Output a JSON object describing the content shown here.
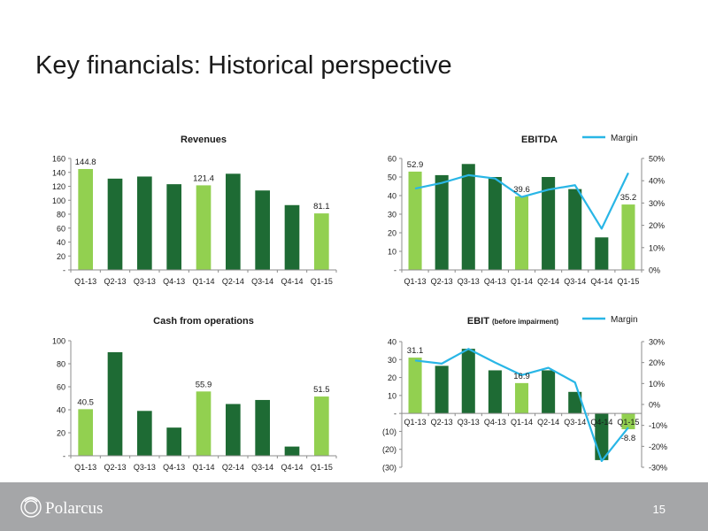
{
  "slide": {
    "title": "Key financials: Historical perspective",
    "page_number": "15",
    "logo_text": "Polarcus"
  },
  "colors": {
    "light_green": "#92d050",
    "dark_green": "#1e6b34",
    "margin_line": "#29b6e6",
    "axis_text": "#1a1a1a",
    "footer_bg": "#a5a6a8"
  },
  "chart_data": [
    {
      "id": "revenues",
      "type": "bar",
      "title": "Revenues",
      "categories": [
        "Q1-13",
        "Q2-13",
        "Q3-13",
        "Q4-13",
        "Q1-14",
        "Q2-14",
        "Q3-14",
        "Q4-14",
        "Q1-15"
      ],
      "values": [
        144.8,
        131,
        134,
        123,
        121.4,
        138,
        114,
        93,
        81.1
      ],
      "highlight": [
        0,
        4,
        8
      ],
      "data_labels": {
        "0": "144.8",
        "4": "121.4",
        "8": "81.1"
      },
      "ylim": [
        0,
        160
      ],
      "yticks": [
        0,
        20,
        40,
        60,
        80,
        100,
        120,
        140,
        160
      ],
      "ytick_labels": [
        "-",
        "20",
        "40",
        "60",
        "80",
        "100",
        "120",
        "140",
        "160"
      ],
      "grid": false
    },
    {
      "id": "ebitda",
      "type": "bar",
      "title": "EBITDA",
      "legend": "Margin",
      "legend_position": "top-right",
      "categories": [
        "Q1-13",
        "Q2-13",
        "Q3-13",
        "Q4-13",
        "Q1-14",
        "Q2-14",
        "Q3-14",
        "Q4-14",
        "Q1-15"
      ],
      "values": [
        52.9,
        51,
        57,
        50,
        39.6,
        50,
        43.5,
        17.5,
        35.2
      ],
      "highlight": [
        0,
        4,
        8
      ],
      "data_labels": {
        "0": "52.9",
        "4": "39.6",
        "8": "35.2"
      },
      "ylim": [
        0,
        60
      ],
      "yticks": [
        0,
        10,
        20,
        30,
        40,
        50,
        60
      ],
      "ytick_labels": [
        "-",
        "10",
        "20",
        "30",
        "40",
        "50",
        "60"
      ],
      "margin": [
        36.5,
        39,
        42.5,
        41,
        32.7,
        36,
        38,
        18.5,
        43.5
      ],
      "y2lim": [
        0,
        50
      ],
      "y2ticks": [
        0,
        10,
        20,
        30,
        40,
        50
      ],
      "y2tick_labels": [
        "0%",
        "10%",
        "20%",
        "30%",
        "40%",
        "50%"
      ],
      "grid": false
    },
    {
      "id": "cash-from-operations",
      "type": "bar",
      "title": "Cash from operations",
      "categories": [
        "Q1-13",
        "Q2-13",
        "Q3-13",
        "Q4-13",
        "Q1-14",
        "Q2-14",
        "Q3-14",
        "Q4-14",
        "Q1-15"
      ],
      "values": [
        40.5,
        90,
        39,
        24.5,
        55.9,
        45,
        48.5,
        8,
        51.5
      ],
      "highlight": [
        0,
        4,
        8
      ],
      "data_labels": {
        "0": "40.5",
        "4": "55.9",
        "8": "51.5"
      },
      "ylim": [
        0,
        100
      ],
      "yticks": [
        0,
        20,
        40,
        60,
        80,
        100
      ],
      "ytick_labels": [
        "-",
        "20",
        "40",
        "60",
        "80",
        "100"
      ],
      "grid": false
    },
    {
      "id": "ebit",
      "type": "bar",
      "title": "EBIT",
      "title_suffix": "(before impairment)",
      "legend": "Margin",
      "legend_position": "top-right",
      "categories": [
        "Q1-13",
        "Q2-13",
        "Q3-13",
        "Q4-13",
        "Q1-14",
        "Q2-14",
        "Q3-14",
        "Q4-14",
        "Q1-15"
      ],
      "values": [
        31.1,
        26.5,
        36,
        24,
        16.9,
        24,
        12,
        -26,
        -8.8
      ],
      "highlight": [
        0,
        4,
        8
      ],
      "data_labels": {
        "0": "31.1",
        "4": "16.9",
        "8": "-8.8"
      },
      "ylim": [
        -30,
        40
      ],
      "yticks": [
        -30,
        -20,
        -10,
        0,
        10,
        20,
        30,
        40
      ],
      "ytick_labels": [
        "(30)",
        "(20)",
        "(10)",
        "-",
        "10",
        "20",
        "30",
        "40"
      ],
      "margin": [
        21,
        19.5,
        26.5,
        20,
        14,
        17.5,
        10.5,
        -27,
        -11
      ],
      "y2lim": [
        -30,
        30
      ],
      "y2ticks": [
        -30,
        -20,
        -10,
        0,
        10,
        20,
        30
      ],
      "y2tick_labels": [
        "-30%",
        "-20%",
        "-10%",
        "0%",
        "10%",
        "20%",
        "30%"
      ],
      "grid": false
    }
  ]
}
